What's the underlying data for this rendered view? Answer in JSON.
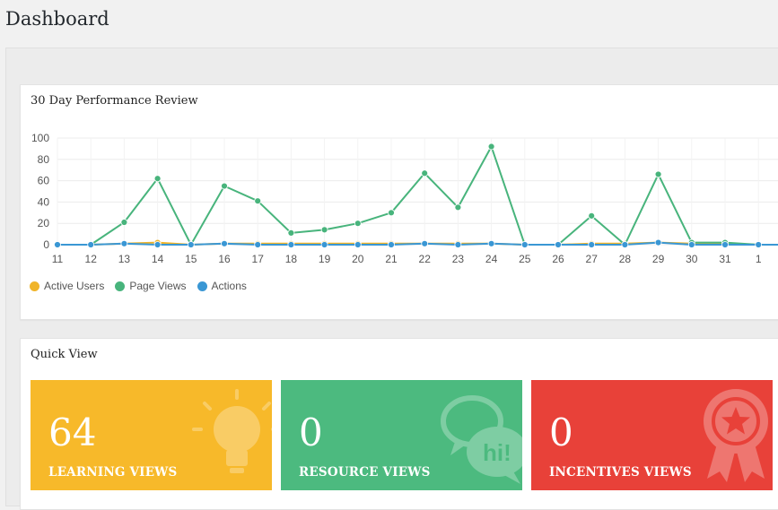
{
  "page": {
    "title": "Dashboard"
  },
  "performance": {
    "title": "30 Day Performance Review",
    "legend": [
      {
        "label": "Active Users",
        "color": "#f0b429"
      },
      {
        "label": "Page Views",
        "color": "#48b47c"
      },
      {
        "label": "Actions",
        "color": "#3a97d4"
      }
    ]
  },
  "chart_data": {
    "type": "line",
    "title": "30 Day Performance Review",
    "categories": [
      "11",
      "12",
      "13",
      "14",
      "15",
      "16",
      "17",
      "18",
      "19",
      "20",
      "21",
      "22",
      "23",
      "24",
      "25",
      "26",
      "27",
      "28",
      "29",
      "30",
      "31",
      "1"
    ],
    "ylim": [
      0,
      100
    ],
    "yticks": [
      0,
      20,
      40,
      60,
      80,
      100
    ],
    "grid": true,
    "legend_position": "bottom-left",
    "series": [
      {
        "name": "Active Users",
        "color": "#f0b429",
        "values": [
          0,
          0,
          1,
          2,
          0,
          1,
          1,
          1,
          1,
          1,
          1,
          1,
          1,
          1,
          0,
          0,
          1,
          1,
          2,
          1,
          1,
          0
        ]
      },
      {
        "name": "Page Views",
        "color": "#48b47c",
        "values": [
          0,
          0,
          21,
          62,
          0,
          55,
          41,
          11,
          14,
          20,
          30,
          67,
          35,
          92,
          0,
          0,
          27,
          0,
          66,
          2,
          2,
          0
        ]
      },
      {
        "name": "Actions",
        "color": "#3a97d4",
        "values": [
          0,
          0,
          1,
          0,
          0,
          1,
          0,
          0,
          0,
          0,
          0,
          1,
          0,
          1,
          0,
          0,
          0,
          0,
          2,
          0,
          0,
          0
        ]
      }
    ]
  },
  "quick_view": {
    "title": "Quick View",
    "tiles": [
      {
        "value": "64",
        "label": "LEARNING VIEWS",
        "color": "#f7b92a",
        "icon": "lightbulb-icon"
      },
      {
        "value": "0",
        "label": "RESOURCE VIEWS",
        "color": "#4cba7f",
        "icon": "chat-bubbles-icon"
      },
      {
        "value": "0",
        "label": "INCENTIVES VIEWS",
        "color": "#e84139",
        "icon": "award-ribbon-icon"
      }
    ]
  }
}
